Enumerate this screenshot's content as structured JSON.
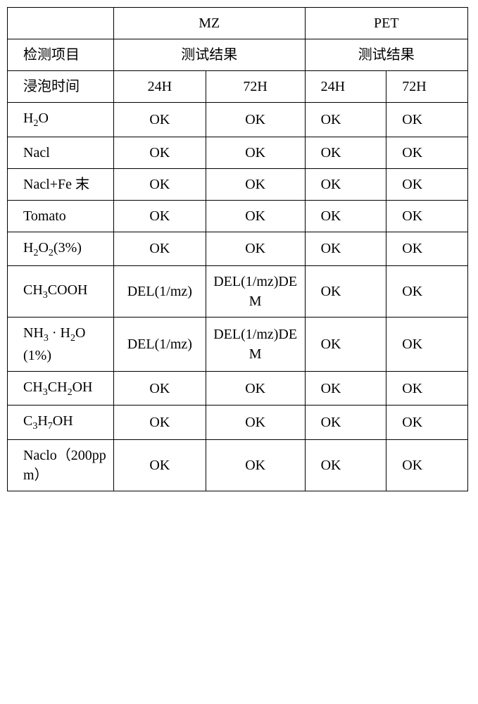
{
  "header": {
    "mz": "MZ",
    "pet": "PET",
    "item_label": "检测项目",
    "result_label": "测试结果",
    "soak_label": "浸泡时间",
    "t24": "24H",
    "t72": "72H",
    "t24s": "24H",
    "t72s": "72H"
  },
  "rows": [
    {
      "label_html": "H<sub>2</sub>O",
      "mz24": "OK",
      "mz72": "OK",
      "pet24": "OK",
      "pet72": "OK"
    },
    {
      "label_html": "Nacl",
      "mz24": "OK",
      "mz72": "OK",
      "pet24": "OK",
      "pet72": "OK"
    },
    {
      "label_html": "Nacl+Fe 末",
      "mz24": "OK",
      "mz72": "OK",
      "pet24": "OK",
      "pet72": "OK"
    },
    {
      "label_html": "Tomato",
      "mz24": "OK",
      "mz72": "OK",
      "pet24": "OK",
      "pet72": "OK"
    },
    {
      "label_html": "H<sub>2</sub>O<sub>2</sub>(3%)",
      "mz24": "OK",
      "mz72": "OK",
      "pet24": "OK",
      "pet72": "OK"
    },
    {
      "label_html": "CH<sub>3</sub>COOH",
      "mz24": "DEL(1/mz)",
      "mz72": "DEL(1/mz)DEM",
      "pet24": "OK",
      "pet72": "OK"
    },
    {
      "label_html": "NH<sub>3</sub> · H<sub>2</sub>O(1%)",
      "mz24": "DEL(1/mz)",
      "mz72": "DEL(1/mz)DEM",
      "pet24": "OK",
      "pet72": "OK"
    },
    {
      "label_html": "CH<sub>3</sub>CH<sub>2</sub>OH",
      "mz24": "OK",
      "mz72": "OK",
      "pet24": "OK",
      "pet72": "OK"
    },
    {
      "label_html": "C<sub>3</sub>H<sub>7</sub>OH",
      "mz24": "OK",
      "mz72": "OK",
      "pet24": "OK",
      "pet72": "OK"
    },
    {
      "label_html": "Naclo（200ppm）",
      "mz24": "OK",
      "mz72": "OK",
      "pet24": "OK",
      "pet72": "OK"
    }
  ]
}
